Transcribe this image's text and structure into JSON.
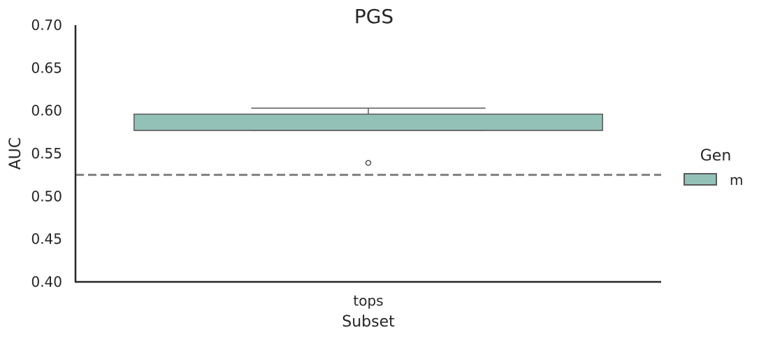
{
  "chart_data": {
    "type": "box",
    "title": "PGS",
    "xlabel": "Subset",
    "ylabel": "AUC",
    "ylim": [
      0.4,
      0.7
    ],
    "yticks": [
      "0.40",
      "0.45",
      "0.50",
      "0.55",
      "0.60",
      "0.65",
      "0.70"
    ],
    "categories": [
      "tops"
    ],
    "series": [
      {
        "name": "m",
        "color": "#93c1b8",
        "boxes": [
          {
            "category": "tops",
            "whisker_low": 0.577,
            "q1": 0.577,
            "median": 0.577,
            "q3": 0.596,
            "whisker_high": 0.603,
            "outliers": [
              0.539
            ]
          }
        ]
      }
    ],
    "reference_line": {
      "y": 0.525,
      "style": "dashed",
      "color": "#808080"
    },
    "legend": {
      "title": "Gen",
      "position": "right",
      "entries": [
        "m"
      ]
    },
    "grid": false
  }
}
